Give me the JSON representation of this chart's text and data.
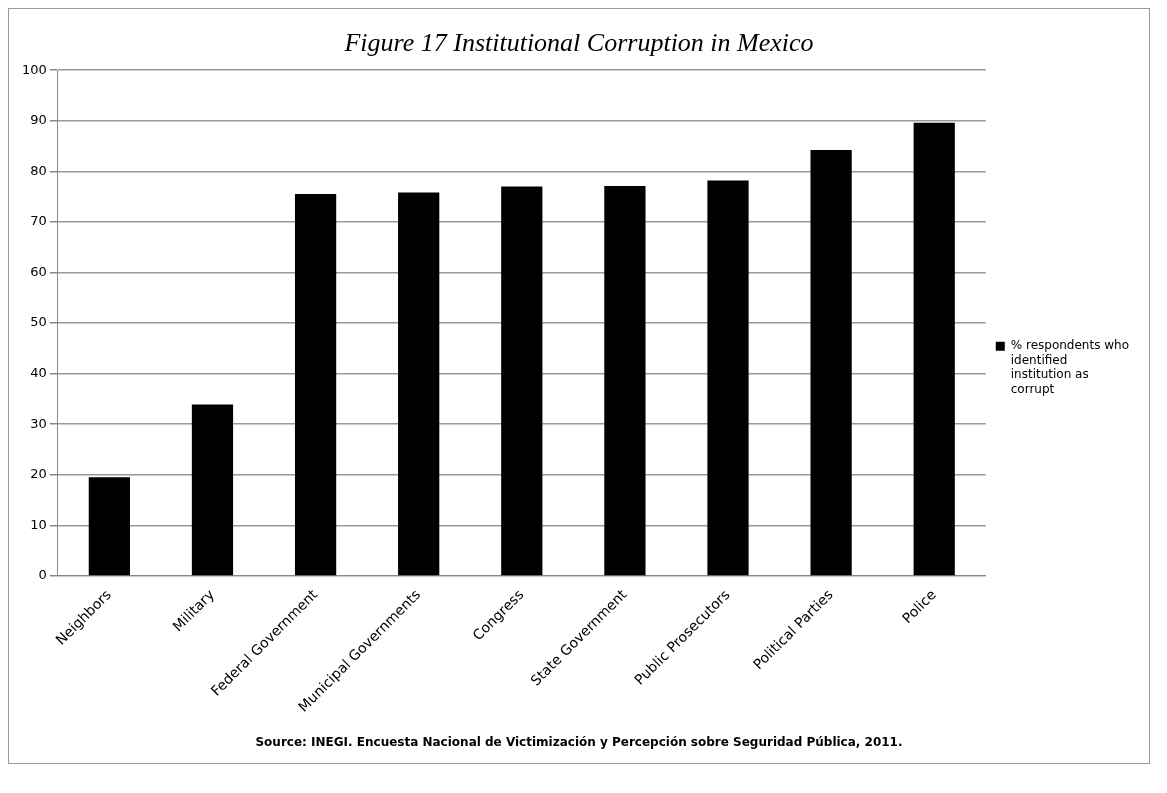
{
  "chart_data": {
    "type": "bar",
    "title": "Figure 17 Institutional Corruption in Mexico",
    "categories": [
      "Neighbors",
      "Military",
      "Federal Government",
      "Municipal Governments",
      "Congress",
      "State Government",
      "Public Prosecutors",
      "Political Parties",
      "Police"
    ],
    "series": [
      {
        "name": "% respondents who identified institution as corrupt",
        "color": "#000000",
        "values": [
          19.5,
          33.9,
          75.5,
          75.8,
          77.0,
          77.1,
          78.2,
          84.2,
          89.6
        ]
      }
    ],
    "ylim": [
      0,
      100
    ],
    "yticks": [
      0,
      10,
      20,
      30,
      40,
      50,
      60,
      70,
      80,
      90,
      100
    ],
    "grid": "y",
    "legend": "right",
    "annotations": [
      "Source: INEGI. Encuesta Nacional de Victimización y Percepción sobre Seguridad Pública, 2011."
    ]
  }
}
